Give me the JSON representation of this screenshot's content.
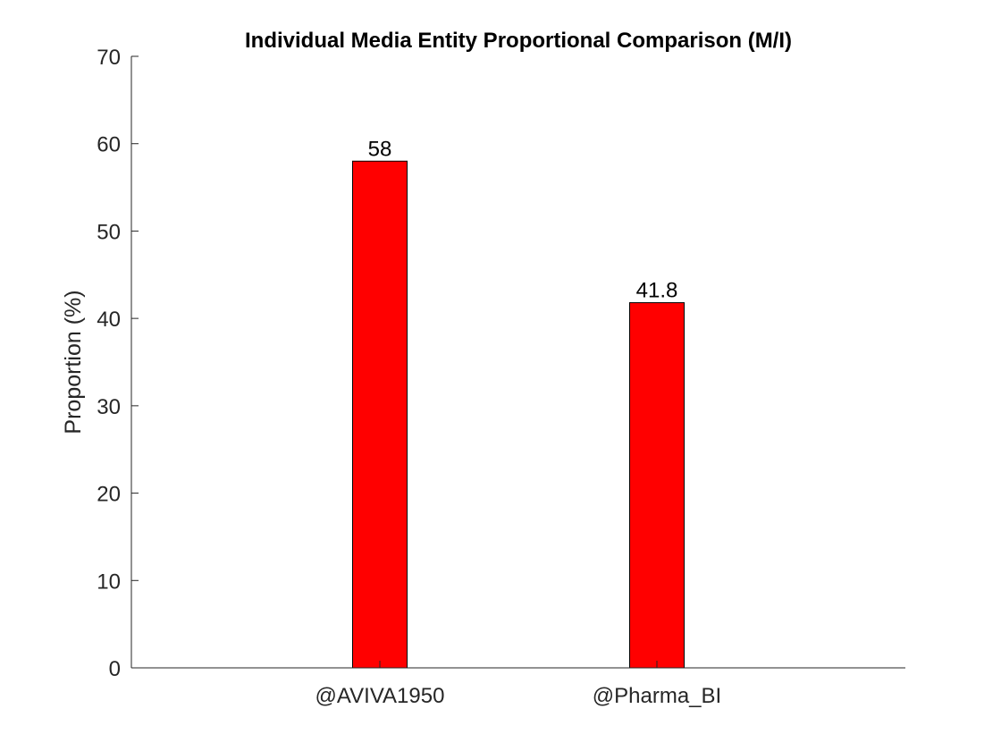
{
  "chart_data": {
    "type": "bar",
    "title": "Individual Media Entity Proportional Comparison (M/I)",
    "xlabel": "",
    "ylabel": "Proportion (%)",
    "categories": [
      "@AVIVA1950",
      "@Pharma_BI"
    ],
    "values": [
      58,
      41.8
    ],
    "data_labels": [
      "58",
      "41.8"
    ],
    "ylim": [
      0,
      70
    ],
    "yticks": [
      0,
      10,
      20,
      30,
      40,
      50,
      60,
      70
    ],
    "grid": false,
    "legend": null,
    "bar_color": "#ff0000",
    "bar_edge_color": "#000000"
  }
}
